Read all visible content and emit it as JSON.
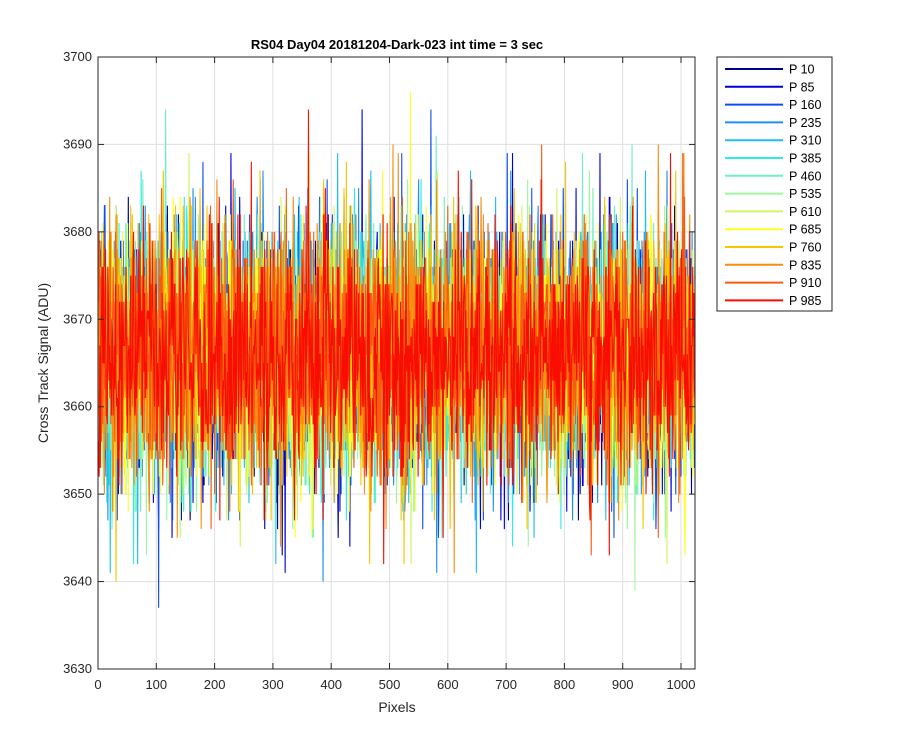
{
  "chart_data": {
    "type": "line",
    "title": "RS04 Day04 20181204-Dark-023 int time = 3 sec",
    "xlabel": "Pixels",
    "ylabel": "Cross Track Signal (ADU)",
    "xlim": [
      0,
      1024
    ],
    "ylim": [
      3630,
      3700
    ],
    "x_ticks": [
      "0",
      "100",
      "200",
      "300",
      "400",
      "500",
      "600",
      "700",
      "800",
      "900",
      "1000"
    ],
    "y_ticks": [
      "3630",
      "3640",
      "3650",
      "3660",
      "3670",
      "3680",
      "3690",
      "3700"
    ],
    "grid": true,
    "legend_position": "outside-right",
    "x_points": 1024,
    "mean_signal": 3666,
    "signal_range": [
      3637,
      3696
    ],
    "series": [
      {
        "name": "P 10",
        "color": "#00008F"
      },
      {
        "name": "P 85",
        "color": "#0000D9"
      },
      {
        "name": "P 160",
        "color": "#0F4FF0"
      },
      {
        "name": "P 235",
        "color": "#1F90F0"
      },
      {
        "name": "P 310",
        "color": "#20BDF0"
      },
      {
        "name": "P 385",
        "color": "#30EBE5"
      },
      {
        "name": "P 460",
        "color": "#6FF0C0"
      },
      {
        "name": "P 535",
        "color": "#A0F5A0"
      },
      {
        "name": "P 610",
        "color": "#D0F560"
      },
      {
        "name": "P 685",
        "color": "#FFFF20"
      },
      {
        "name": "P 760",
        "color": "#F9C400"
      },
      {
        "name": "P 835",
        "color": "#F98E10"
      },
      {
        "name": "P 910",
        "color": "#F95A10"
      },
      {
        "name": "P 985",
        "color": "#F90D00"
      }
    ],
    "spikes": [
      {
        "series": 2,
        "x": 103,
        "y": 3637
      },
      {
        "series": 6,
        "x": 115,
        "y": 3694
      },
      {
        "series": 3,
        "x": 385,
        "y": 3640
      },
      {
        "series": 13,
        "x": 360,
        "y": 3694
      },
      {
        "series": 1,
        "x": 452,
        "y": 3694
      },
      {
        "series": 9,
        "x": 535,
        "y": 3696
      },
      {
        "series": 2,
        "x": 570,
        "y": 3694
      },
      {
        "series": 7,
        "x": 920,
        "y": 3639
      },
      {
        "series": 12,
        "x": 760,
        "y": 3690
      },
      {
        "series": 1,
        "x": 860,
        "y": 3689
      },
      {
        "series": 4,
        "x": 20,
        "y": 3641
      },
      {
        "series": 10,
        "x": 30,
        "y": 3640
      },
      {
        "series": 1,
        "x": 320,
        "y": 3641
      },
      {
        "series": 3,
        "x": 580,
        "y": 3641
      },
      {
        "series": 11,
        "x": 610,
        "y": 3641
      },
      {
        "series": 12,
        "x": 845,
        "y": 3643
      },
      {
        "series": 8,
        "x": 975,
        "y": 3642
      },
      {
        "series": 6,
        "x": 830,
        "y": 3689
      },
      {
        "series": 4,
        "x": 410,
        "y": 3689
      },
      {
        "series": 11,
        "x": 960,
        "y": 3690
      },
      {
        "series": 6,
        "x": 915,
        "y": 3690
      }
    ]
  }
}
